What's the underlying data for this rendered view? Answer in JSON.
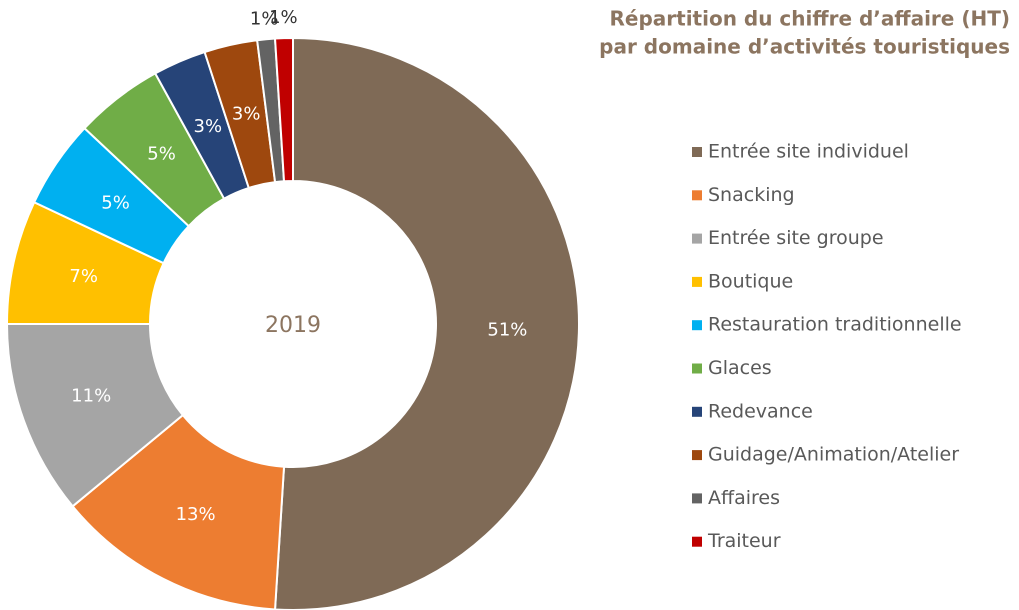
{
  "chart_data": {
    "type": "donut",
    "title": [
      "Répartition du chiffre d’affaire (HT)",
      "par domaine d’activités touristiques"
    ],
    "center_label": "2019",
    "categories": [
      "Entrée site individuel",
      "Snacking",
      "Entrée site groupe",
      "Boutique",
      "Restauration traditionnelle",
      "Glaces",
      "Redevance",
      "Guidage/Animation/Atelier",
      "Affaires",
      "Traiteur"
    ],
    "values": [
      51,
      13,
      11,
      7,
      5,
      5,
      3,
      3,
      1,
      1
    ],
    "value_labels": [
      "51%",
      "13%",
      "11%",
      "7%",
      "5%",
      "5%",
      "3%",
      "3%",
      "1%",
      "1%"
    ],
    "colors": [
      "#7f6a56",
      "#ed7d31",
      "#a5a5a5",
      "#ffc000",
      "#00b0f0",
      "#70ad47",
      "#264478",
      "#9e480e",
      "#636363",
      "#c00000"
    ],
    "legend": "right"
  }
}
